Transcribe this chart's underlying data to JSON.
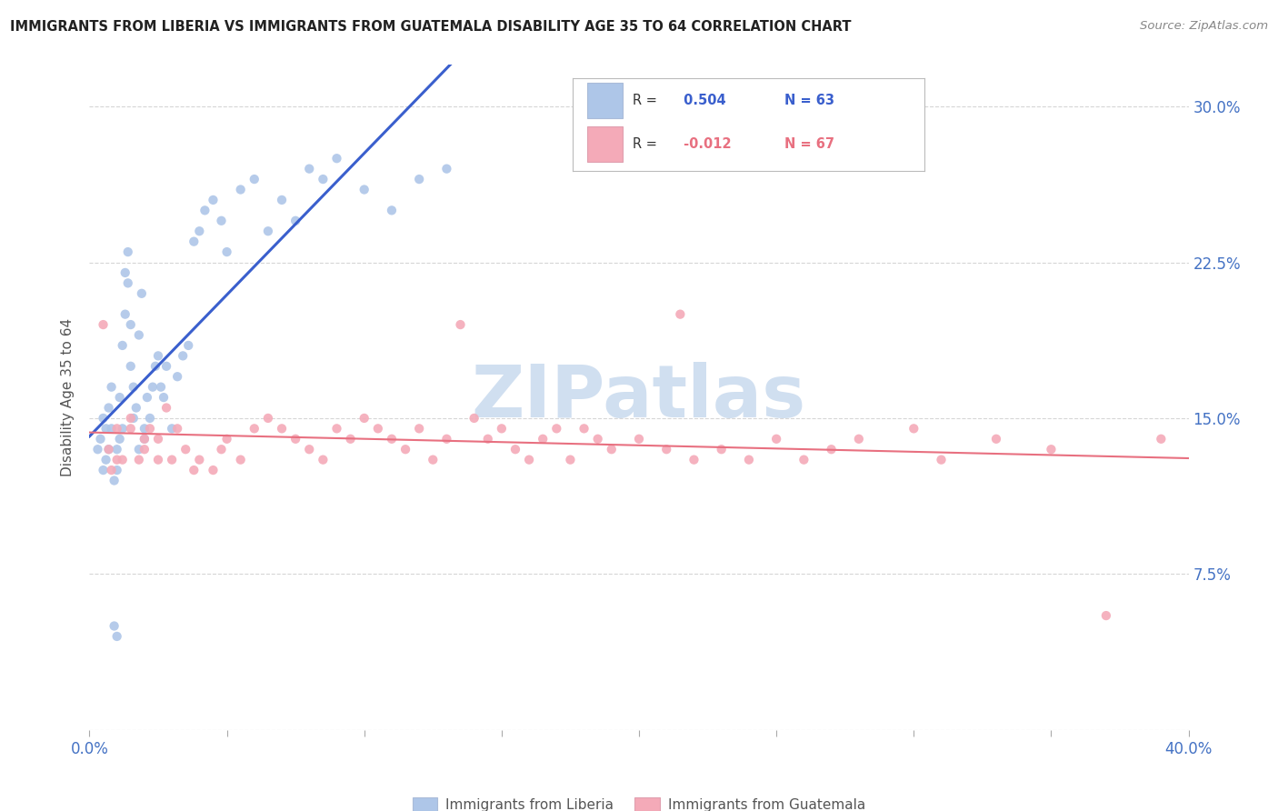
{
  "title": "IMMIGRANTS FROM LIBERIA VS IMMIGRANTS FROM GUATEMALA DISABILITY AGE 35 TO 64 CORRELATION CHART",
  "source_text": "Source: ZipAtlas.com",
  "ylabel": "Disability Age 35 to 64",
  "xlim": [
    0.0,
    0.4
  ],
  "ylim": [
    0.0,
    0.32
  ],
  "x_ticks": [
    0.0,
    0.05,
    0.1,
    0.15,
    0.2,
    0.25,
    0.3,
    0.35,
    0.4
  ],
  "y_ticks": [
    0.0,
    0.075,
    0.15,
    0.225,
    0.3
  ],
  "liberia_R": 0.504,
  "liberia_N": 63,
  "guatemala_R": -0.012,
  "guatemala_N": 67,
  "liberia_color": "#aec6e8",
  "guatemala_color": "#f4aab8",
  "liberia_line_color": "#3a5fcd",
  "guatemala_line_color": "#e87080",
  "watermark_color": "#d0dff0",
  "liberia_x": [
    0.003,
    0.004,
    0.005,
    0.005,
    0.006,
    0.006,
    0.007,
    0.007,
    0.008,
    0.008,
    0.009,
    0.009,
    0.01,
    0.01,
    0.01,
    0.011,
    0.011,
    0.012,
    0.012,
    0.013,
    0.013,
    0.014,
    0.014,
    0.015,
    0.015,
    0.016,
    0.016,
    0.017,
    0.018,
    0.018,
    0.019,
    0.02,
    0.02,
    0.021,
    0.022,
    0.023,
    0.024,
    0.025,
    0.026,
    0.027,
    0.028,
    0.03,
    0.032,
    0.034,
    0.036,
    0.038,
    0.04,
    0.042,
    0.045,
    0.048,
    0.05,
    0.055,
    0.06,
    0.065,
    0.07,
    0.075,
    0.08,
    0.085,
    0.09,
    0.1,
    0.11,
    0.12,
    0.13
  ],
  "liberia_y": [
    0.135,
    0.14,
    0.125,
    0.15,
    0.13,
    0.145,
    0.135,
    0.155,
    0.145,
    0.165,
    0.05,
    0.12,
    0.125,
    0.135,
    0.045,
    0.14,
    0.16,
    0.145,
    0.185,
    0.2,
    0.22,
    0.215,
    0.23,
    0.195,
    0.175,
    0.15,
    0.165,
    0.155,
    0.135,
    0.19,
    0.21,
    0.14,
    0.145,
    0.16,
    0.15,
    0.165,
    0.175,
    0.18,
    0.165,
    0.16,
    0.175,
    0.145,
    0.17,
    0.18,
    0.185,
    0.235,
    0.24,
    0.25,
    0.255,
    0.245,
    0.23,
    0.26,
    0.265,
    0.24,
    0.255,
    0.245,
    0.27,
    0.265,
    0.275,
    0.26,
    0.25,
    0.265,
    0.27
  ],
  "guatemala_x": [
    0.005,
    0.007,
    0.008,
    0.01,
    0.01,
    0.012,
    0.015,
    0.015,
    0.018,
    0.02,
    0.02,
    0.022,
    0.025,
    0.025,
    0.028,
    0.03,
    0.032,
    0.035,
    0.038,
    0.04,
    0.045,
    0.048,
    0.05,
    0.055,
    0.06,
    0.065,
    0.07,
    0.075,
    0.08,
    0.085,
    0.09,
    0.095,
    0.1,
    0.105,
    0.11,
    0.115,
    0.12,
    0.125,
    0.13,
    0.135,
    0.14,
    0.145,
    0.15,
    0.155,
    0.16,
    0.165,
    0.17,
    0.175,
    0.18,
    0.185,
    0.19,
    0.2,
    0.21,
    0.215,
    0.22,
    0.23,
    0.24,
    0.25,
    0.26,
    0.27,
    0.28,
    0.3,
    0.31,
    0.33,
    0.35,
    0.37,
    0.39
  ],
  "guatemala_y": [
    0.195,
    0.135,
    0.125,
    0.13,
    0.145,
    0.13,
    0.15,
    0.145,
    0.13,
    0.14,
    0.135,
    0.145,
    0.14,
    0.13,
    0.155,
    0.13,
    0.145,
    0.135,
    0.125,
    0.13,
    0.125,
    0.135,
    0.14,
    0.13,
    0.145,
    0.15,
    0.145,
    0.14,
    0.135,
    0.13,
    0.145,
    0.14,
    0.15,
    0.145,
    0.14,
    0.135,
    0.145,
    0.13,
    0.14,
    0.195,
    0.15,
    0.14,
    0.145,
    0.135,
    0.13,
    0.14,
    0.145,
    0.13,
    0.145,
    0.14,
    0.135,
    0.14,
    0.135,
    0.2,
    0.13,
    0.135,
    0.13,
    0.14,
    0.13,
    0.135,
    0.14,
    0.145,
    0.13,
    0.14,
    0.135,
    0.055,
    0.14
  ]
}
